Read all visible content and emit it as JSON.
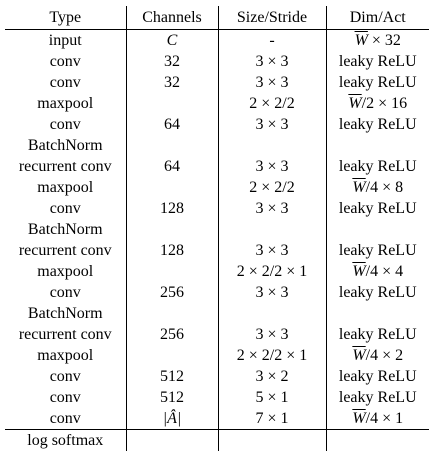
{
  "headers": {
    "type": "Type",
    "channels": "Channels",
    "size_stride": "Size/Stride",
    "dim_act": "Dim/Act"
  },
  "rows": [
    {
      "type": "input",
      "channels": "C",
      "size": "-",
      "dim": "W × 32"
    },
    {
      "type": "conv",
      "channels": "32",
      "size": "3 × 3",
      "dim": "leaky ReLU"
    },
    {
      "type": "conv",
      "channels": "32",
      "size": "3 × 3",
      "dim": "leaky ReLU"
    },
    {
      "type": "maxpool",
      "channels": "",
      "size": "2 × 2/2",
      "dim": "W/2 × 16"
    },
    {
      "type": "conv",
      "channels": "64",
      "size": "3 × 3",
      "dim": "leaky ReLU"
    },
    {
      "type": "BatchNorm",
      "channels": "",
      "size": "",
      "dim": ""
    },
    {
      "type": "recurrent conv",
      "channels": "64",
      "size": "3 × 3",
      "dim": "leaky ReLU"
    },
    {
      "type": "maxpool",
      "channels": "",
      "size": "2 × 2/2",
      "dim": "W/4 × 8"
    },
    {
      "type": "conv",
      "channels": "128",
      "size": "3 × 3",
      "dim": "leaky ReLU"
    },
    {
      "type": "BatchNorm",
      "channels": "",
      "size": "",
      "dim": ""
    },
    {
      "type": "recurrent conv",
      "channels": "128",
      "size": "3 × 3",
      "dim": "leaky ReLU"
    },
    {
      "type": "maxpool",
      "channels": "",
      "size": "2 × 2/2 × 1",
      "dim": "W/4 × 4"
    },
    {
      "type": "conv",
      "channels": "256",
      "size": "3 × 3",
      "dim": "leaky ReLU"
    },
    {
      "type": "BatchNorm",
      "channels": "",
      "size": "",
      "dim": ""
    },
    {
      "type": "recurrent conv",
      "channels": "256",
      "size": "3 × 3",
      "dim": "leaky ReLU"
    },
    {
      "type": "maxpool",
      "channels": "",
      "size": "2 × 2/2 × 1",
      "dim": "W/4 × 2"
    },
    {
      "type": "conv",
      "channels": "512",
      "size": "3 × 2",
      "dim": "leaky ReLU"
    },
    {
      "type": "conv",
      "channels": "512",
      "size": "5 × 1",
      "dim": "leaky ReLU"
    },
    {
      "type": "conv",
      "channels": "|Â|",
      "size": "7 × 1",
      "dim": "W/4 × 1"
    },
    {
      "type": "log softmax",
      "channels": "",
      "size": "",
      "dim": ""
    }
  ]
}
